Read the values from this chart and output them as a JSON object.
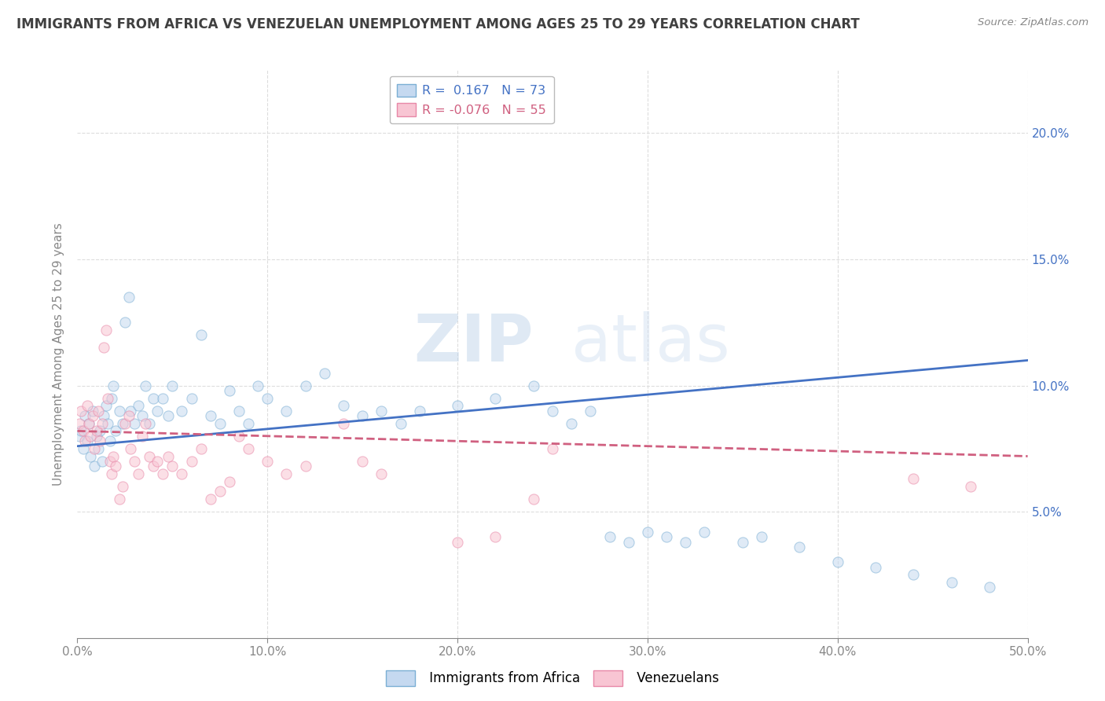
{
  "title": "IMMIGRANTS FROM AFRICA VS VENEZUELAN UNEMPLOYMENT AMONG AGES 25 TO 29 YEARS CORRELATION CHART",
  "source": "Source: ZipAtlas.com",
  "ylabel": "Unemployment Among Ages 25 to 29 years",
  "xlim": [
    0.0,
    0.5
  ],
  "ylim": [
    0.0,
    0.225
  ],
  "xticks": [
    0.0,
    0.1,
    0.2,
    0.3,
    0.4,
    0.5
  ],
  "xticklabels": [
    "0.0%",
    "10.0%",
    "20.0%",
    "30.0%",
    "40.0%",
    "50.0%"
  ],
  "yticks": [
    0.05,
    0.1,
    0.15,
    0.2
  ],
  "yticklabels": [
    "5.0%",
    "10.0%",
    "15.0%",
    "20.0%"
  ],
  "R_africa": 0.167,
  "N_africa": 73,
  "R_venezuela": -0.076,
  "N_venezuela": 55,
  "africa_scatter": [
    [
      0.001,
      0.08
    ],
    [
      0.002,
      0.082
    ],
    [
      0.003,
      0.075
    ],
    [
      0.004,
      0.088
    ],
    [
      0.005,
      0.078
    ],
    [
      0.006,
      0.085
    ],
    [
      0.007,
      0.072
    ],
    [
      0.008,
      0.09
    ],
    [
      0.009,
      0.068
    ],
    [
      0.01,
      0.08
    ],
    [
      0.011,
      0.075
    ],
    [
      0.012,
      0.082
    ],
    [
      0.013,
      0.07
    ],
    [
      0.014,
      0.088
    ],
    [
      0.015,
      0.092
    ],
    [
      0.016,
      0.085
    ],
    [
      0.017,
      0.078
    ],
    [
      0.018,
      0.095
    ],
    [
      0.019,
      0.1
    ],
    [
      0.02,
      0.082
    ],
    [
      0.022,
      0.09
    ],
    [
      0.024,
      0.085
    ],
    [
      0.025,
      0.125
    ],
    [
      0.027,
      0.135
    ],
    [
      0.028,
      0.09
    ],
    [
      0.03,
      0.085
    ],
    [
      0.032,
      0.092
    ],
    [
      0.034,
      0.088
    ],
    [
      0.036,
      0.1
    ],
    [
      0.038,
      0.085
    ],
    [
      0.04,
      0.095
    ],
    [
      0.042,
      0.09
    ],
    [
      0.045,
      0.095
    ],
    [
      0.048,
      0.088
    ],
    [
      0.05,
      0.1
    ],
    [
      0.055,
      0.09
    ],
    [
      0.06,
      0.095
    ],
    [
      0.065,
      0.12
    ],
    [
      0.07,
      0.088
    ],
    [
      0.075,
      0.085
    ],
    [
      0.08,
      0.098
    ],
    [
      0.085,
      0.09
    ],
    [
      0.09,
      0.085
    ],
    [
      0.095,
      0.1
    ],
    [
      0.1,
      0.095
    ],
    [
      0.11,
      0.09
    ],
    [
      0.12,
      0.1
    ],
    [
      0.13,
      0.105
    ],
    [
      0.14,
      0.092
    ],
    [
      0.15,
      0.088
    ],
    [
      0.16,
      0.09
    ],
    [
      0.17,
      0.085
    ],
    [
      0.18,
      0.09
    ],
    [
      0.2,
      0.092
    ],
    [
      0.22,
      0.095
    ],
    [
      0.24,
      0.1
    ],
    [
      0.25,
      0.09
    ],
    [
      0.26,
      0.085
    ],
    [
      0.27,
      0.09
    ],
    [
      0.28,
      0.04
    ],
    [
      0.29,
      0.038
    ],
    [
      0.3,
      0.042
    ],
    [
      0.31,
      0.04
    ],
    [
      0.32,
      0.038
    ],
    [
      0.33,
      0.042
    ],
    [
      0.35,
      0.038
    ],
    [
      0.36,
      0.04
    ],
    [
      0.38,
      0.036
    ],
    [
      0.4,
      0.03
    ],
    [
      0.42,
      0.028
    ],
    [
      0.44,
      0.025
    ],
    [
      0.46,
      0.022
    ],
    [
      0.48,
      0.02
    ]
  ],
  "venezuela_scatter": [
    [
      0.001,
      0.085
    ],
    [
      0.002,
      0.09
    ],
    [
      0.003,
      0.082
    ],
    [
      0.004,
      0.078
    ],
    [
      0.005,
      0.092
    ],
    [
      0.006,
      0.085
    ],
    [
      0.007,
      0.08
    ],
    [
      0.008,
      0.088
    ],
    [
      0.009,
      0.075
    ],
    [
      0.01,
      0.082
    ],
    [
      0.011,
      0.09
    ],
    [
      0.012,
      0.078
    ],
    [
      0.013,
      0.085
    ],
    [
      0.014,
      0.115
    ],
    [
      0.015,
      0.122
    ],
    [
      0.016,
      0.095
    ],
    [
      0.017,
      0.07
    ],
    [
      0.018,
      0.065
    ],
    [
      0.019,
      0.072
    ],
    [
      0.02,
      0.068
    ],
    [
      0.022,
      0.055
    ],
    [
      0.024,
      0.06
    ],
    [
      0.025,
      0.085
    ],
    [
      0.027,
      0.088
    ],
    [
      0.028,
      0.075
    ],
    [
      0.03,
      0.07
    ],
    [
      0.032,
      0.065
    ],
    [
      0.034,
      0.08
    ],
    [
      0.036,
      0.085
    ],
    [
      0.038,
      0.072
    ],
    [
      0.04,
      0.068
    ],
    [
      0.042,
      0.07
    ],
    [
      0.045,
      0.065
    ],
    [
      0.048,
      0.072
    ],
    [
      0.05,
      0.068
    ],
    [
      0.055,
      0.065
    ],
    [
      0.06,
      0.07
    ],
    [
      0.065,
      0.075
    ],
    [
      0.07,
      0.055
    ],
    [
      0.075,
      0.058
    ],
    [
      0.08,
      0.062
    ],
    [
      0.085,
      0.08
    ],
    [
      0.09,
      0.075
    ],
    [
      0.1,
      0.07
    ],
    [
      0.11,
      0.065
    ],
    [
      0.12,
      0.068
    ],
    [
      0.14,
      0.085
    ],
    [
      0.15,
      0.07
    ],
    [
      0.16,
      0.065
    ],
    [
      0.2,
      0.038
    ],
    [
      0.22,
      0.04
    ],
    [
      0.24,
      0.055
    ],
    [
      0.25,
      0.075
    ],
    [
      0.44,
      0.063
    ],
    [
      0.47,
      0.06
    ]
  ],
  "africa_line_x": [
    0.0,
    0.5
  ],
  "africa_line_y": [
    0.076,
    0.11
  ],
  "venezuela_line_x": [
    0.0,
    0.5
  ],
  "venezuela_line_y": [
    0.082,
    0.072
  ],
  "watermark_top": "ZIP",
  "watermark_bot": "atlas",
  "background_color": "#ffffff",
  "grid_color": "#dddddd",
  "scatter_alpha": 0.55,
  "scatter_size": 90,
  "africa_color": "#c5d9f0",
  "venezuela_color": "#f8c5d3",
  "africa_edge_color": "#7bafd4",
  "venezuela_edge_color": "#e888a8",
  "africa_line_color": "#4472c4",
  "venezuela_line_color": "#d06080",
  "title_color": "#404040",
  "axis_color": "#888888",
  "legend_edge_color": "#bbbbbb"
}
